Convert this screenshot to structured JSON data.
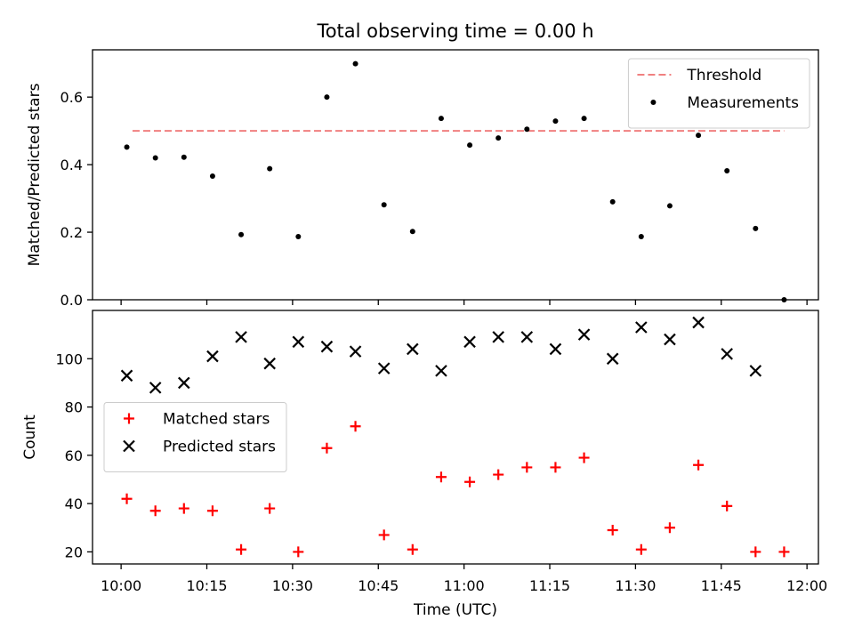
{
  "figure": {
    "title": "Total observing time = 0.00 h",
    "xlabel": "Time (UTC)",
    "xtick_labels": [
      "10:00",
      "10:15",
      "10:30",
      "10:45",
      "11:00",
      "11:15",
      "11:30",
      "11:45",
      "12:00"
    ]
  },
  "chart_data": [
    {
      "type": "scatter",
      "panel": "top",
      "ylabel": "Matched/Predicted stars",
      "ylim": [
        0,
        0.74
      ],
      "yticks": [
        0.0,
        0.2,
        0.4,
        0.6
      ],
      "ytick_labels": [
        "0.0",
        "0.2",
        "0.4",
        "0.6"
      ],
      "xlim": [
        "09:55",
        "12:02"
      ],
      "x": [
        "10:01",
        "10:06",
        "10:11",
        "10:16",
        "10:21",
        "10:26",
        "10:31",
        "10:36",
        "10:41",
        "10:46",
        "10:51",
        "10:56",
        "11:01",
        "11:06",
        "11:11",
        "11:16",
        "11:21",
        "11:26",
        "11:31",
        "11:36",
        "11:41",
        "11:46",
        "11:51",
        "11:56"
      ],
      "series": [
        {
          "name": "Measurements",
          "marker": "dot",
          "color": "#000000",
          "values": [
            0.452,
            0.42,
            0.422,
            0.366,
            0.193,
            0.388,
            0.187,
            0.6,
            0.699,
            0.281,
            0.202,
            0.537,
            0.458,
            0.479,
            0.505,
            0.529,
            0.537,
            0.29,
            0.187,
            0.278,
            0.487,
            0.382,
            0.211,
            0.0
          ]
        }
      ],
      "threshold": {
        "name": "Threshold",
        "value": 0.5,
        "x_range": [
          "10:02",
          "11:56"
        ],
        "color": "#f08080",
        "style": "dashed"
      },
      "legend": {
        "position": "top-right",
        "entries": [
          "Threshold",
          "Measurements"
        ]
      },
      "grid": false
    },
    {
      "type": "scatter",
      "panel": "bottom",
      "ylabel": "Count",
      "ylim": [
        15,
        120
      ],
      "yticks": [
        20,
        40,
        60,
        80,
        100
      ],
      "ytick_labels": [
        "20",
        "40",
        "60",
        "80",
        "100"
      ],
      "xlim": [
        "09:55",
        "12:02"
      ],
      "series": [
        {
          "name": "Matched stars",
          "marker": "plus",
          "color": "#ff0000",
          "x": [
            "10:01",
            "10:06",
            "10:11",
            "10:16",
            "10:21",
            "10:26",
            "10:31",
            "10:36",
            "10:41",
            "10:46",
            "10:51",
            "10:56",
            "11:01",
            "11:06",
            "11:11",
            "11:16",
            "11:21",
            "11:26",
            "11:31",
            "11:36",
            "11:41",
            "11:46",
            "11:51",
            "11:56"
          ],
          "values": [
            42,
            37,
            38,
            37,
            21,
            38,
            20,
            63,
            72,
            27,
            21,
            51,
            49,
            52,
            55,
            55,
            59,
            29,
            21,
            30,
            56,
            39,
            20,
            20
          ]
        },
        {
          "name": "Predicted stars",
          "marker": "x",
          "color": "#000000",
          "x": [
            "10:01",
            "10:06",
            "10:11",
            "10:16",
            "10:21",
            "10:26",
            "10:31",
            "10:36",
            "10:41",
            "10:46",
            "10:51",
            "10:56",
            "11:01",
            "11:06",
            "11:11",
            "11:16",
            "11:21",
            "11:26",
            "11:31",
            "11:36",
            "11:41",
            "11:46",
            "11:51"
          ],
          "values": [
            93,
            88,
            90,
            101,
            109,
            98,
            107,
            105,
            103,
            96,
            104,
            95,
            107,
            109,
            109,
            104,
            110,
            100,
            113,
            108,
            115,
            102,
            95
          ]
        }
      ],
      "legend": {
        "position": "center-left",
        "entries": [
          "Matched stars",
          "Predicted stars"
        ]
      },
      "grid": false
    }
  ]
}
